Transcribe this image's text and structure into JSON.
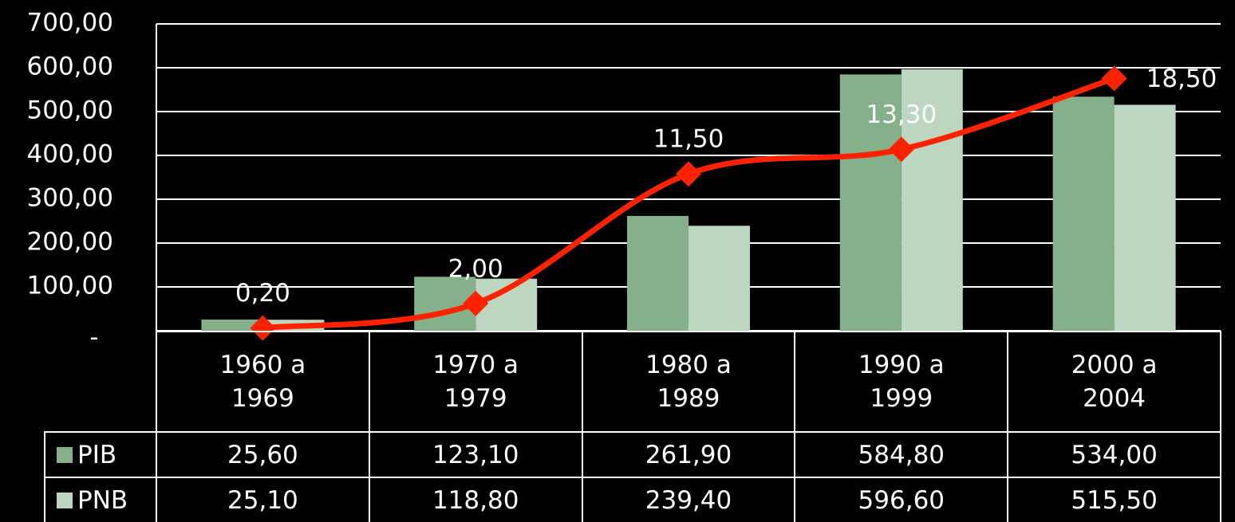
{
  "chart_data": {
    "type": "bar",
    "categories": [
      "1960 a 1969",
      "1970 a 1979",
      "1980 a 1989",
      "1990 a 1999",
      "2000 a 2004"
    ],
    "series": [
      {
        "name": "PIB",
        "color": "#84b08a",
        "values": [
          25.6,
          123.1,
          261.9,
          584.8,
          534.0
        ],
        "value_labels": [
          "25,60",
          "123,10",
          "261,90",
          "584,80",
          "534,00"
        ]
      },
      {
        "name": "PNB",
        "color": "#bdd6c0",
        "values": [
          25.1,
          118.8,
          239.4,
          596.6,
          515.5
        ],
        "value_labels": [
          "25,10",
          "118,80",
          "239,40",
          "596,60",
          "515,50"
        ]
      },
      {
        "type": "line",
        "axis": "y2",
        "color": "#ff2200",
        "values": [
          0.2,
          2.0,
          11.5,
          13.3,
          18.5
        ],
        "value_labels": [
          "0,20",
          "2,00",
          "11,50",
          "13,30",
          "18,50"
        ]
      }
    ],
    "ylim": [
      0,
      700
    ],
    "yticks": [
      {
        "value": 0,
        "label": "-"
      },
      {
        "value": 100,
        "label": "100,00"
      },
      {
        "value": 200,
        "label": "200,00"
      },
      {
        "value": 300,
        "label": "300,00"
      },
      {
        "value": 400,
        "label": "400,00"
      },
      {
        "value": 500,
        "label": "500,00"
      },
      {
        "value": 600,
        "label": "600,00"
      },
      {
        "value": 700,
        "label": "700,00"
      }
    ],
    "y2lim": [
      0,
      22.5
    ],
    "grid": true
  }
}
